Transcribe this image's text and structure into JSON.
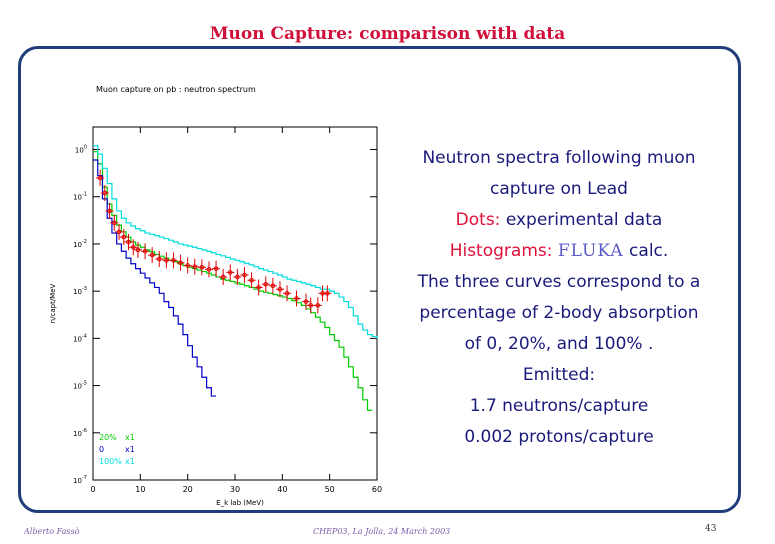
{
  "slide": {
    "title": "Muon Capture: comparison with data",
    "title_color": "#d0103a",
    "frame_color": "#1f3d7a",
    "text_color": "#1a1a7a",
    "highlight_color": "#e0103a"
  },
  "description": {
    "line1": "Neutron spectra following muon",
    "line2": "capture on Lead",
    "dots_label": "Dots:",
    "dots_text": " experimental data",
    "hist_label": "Histograms:",
    "fluka": "FLUKA",
    "hist_text": " calc.",
    "line5": "The three curves correspond to a",
    "line6": "percentage of 2-body absorption",
    "line7": "of 0, 20%, and 100% .",
    "line8": "Emitted:",
    "line9": "1.7 neutrons/capture",
    "line10": "0.002 protons/capture"
  },
  "footer": {
    "author": "Alberto Fassò",
    "conference": "CHEP03, La Jolla, 24 March 2003",
    "page": "43",
    "color": "#7a5aa8"
  },
  "chart_data": {
    "type": "line",
    "title": "Muon capture on pb : neutron spectrum",
    "xlabel": "E_k lab (MeV)",
    "ylabel": "n/capt/MeV",
    "xlim": [
      0,
      60
    ],
    "ylim": [
      1e-07,
      3
    ],
    "yscale": "log",
    "x_ticks": [
      "0",
      "10",
      "20",
      "30",
      "40",
      "50",
      "60"
    ],
    "y_ticks": [
      "10^0",
      "10^-1",
      "10^-2",
      "10^-3",
      "10^-4",
      "10^-5",
      "10^-6",
      "10^-7"
    ],
    "series": [
      {
        "name": "20%",
        "multiplier": "x1",
        "color": "#00cc00",
        "x": [
          0,
          1,
          2,
          3,
          4,
          5,
          6,
          7,
          8,
          9,
          10,
          11,
          12,
          13,
          14,
          15,
          16,
          17,
          18,
          19,
          20,
          21,
          22,
          23,
          24,
          25,
          26,
          27,
          28,
          29,
          30,
          31,
          32,
          33,
          34,
          35,
          36,
          37,
          38,
          39,
          40,
          41,
          42,
          43,
          44,
          45,
          46,
          47,
          48,
          49,
          50,
          51,
          52,
          53,
          54,
          55,
          56,
          57,
          58
        ],
        "y": [
          0.9,
          0.5,
          0.16,
          0.07,
          0.04,
          0.025,
          0.018,
          0.014,
          0.011,
          0.0095,
          0.0085,
          0.0075,
          0.0068,
          0.006,
          0.0055,
          0.005,
          0.0045,
          0.0042,
          0.0038,
          0.0035,
          0.0032,
          0.003,
          0.0028,
          0.0026,
          0.0024,
          0.0022,
          0.002,
          0.0018,
          0.0017,
          0.0016,
          0.0015,
          0.0014,
          0.0013,
          0.0012,
          0.0011,
          0.001,
          0.00095,
          0.0009,
          0.00085,
          0.0008,
          0.00075,
          0.0007,
          0.00063,
          0.00057,
          0.0005,
          0.00042,
          0.00035,
          0.00028,
          0.00022,
          0.00017,
          0.00012,
          9e-05,
          6.5e-05,
          4e-05,
          2.5e-05,
          1.5e-05,
          9e-06,
          5e-06,
          3e-06
        ]
      },
      {
        "name": "0",
        "multiplier": "x1",
        "color": "#0000cc",
        "x": [
          0,
          1,
          2,
          3,
          4,
          5,
          6,
          7,
          8,
          9,
          10,
          11,
          12,
          13,
          14,
          15,
          16,
          17,
          18,
          19,
          20,
          21,
          22,
          23,
          24,
          25
        ],
        "y": [
          0.6,
          0.28,
          0.09,
          0.035,
          0.017,
          0.01,
          0.007,
          0.005,
          0.0038,
          0.003,
          0.0024,
          0.0019,
          0.0015,
          0.0012,
          0.0009,
          0.0006,
          0.00045,
          0.0003,
          0.0002,
          0.00012,
          7e-05,
          4e-05,
          2.5e-05,
          1.5e-05,
          9e-06,
          6e-06
        ]
      },
      {
        "name": "100%",
        "multiplier": "x1",
        "color": "#00dddd",
        "x": [
          0,
          1,
          2,
          3,
          4,
          5,
          6,
          7,
          8,
          9,
          10,
          11,
          12,
          13,
          14,
          15,
          16,
          17,
          18,
          19,
          20,
          21,
          22,
          23,
          24,
          25,
          26,
          27,
          28,
          29,
          30,
          31,
          32,
          33,
          34,
          35,
          36,
          37,
          38,
          39,
          40,
          41,
          42,
          43,
          44,
          45,
          46,
          47,
          48,
          49,
          50,
          51,
          52,
          53,
          54,
          55,
          56,
          57,
          58,
          59,
          60
        ],
        "y": [
          1.2,
          0.8,
          0.4,
          0.19,
          0.09,
          0.05,
          0.035,
          0.028,
          0.024,
          0.021,
          0.019,
          0.017,
          0.016,
          0.015,
          0.014,
          0.013,
          0.012,
          0.011,
          0.01,
          0.0095,
          0.009,
          0.0085,
          0.008,
          0.0075,
          0.007,
          0.0065,
          0.006,
          0.0056,
          0.0052,
          0.0048,
          0.0045,
          0.0042,
          0.0039,
          0.0036,
          0.0033,
          0.003,
          0.0028,
          0.0026,
          0.0024,
          0.0022,
          0.002,
          0.0018,
          0.0017,
          0.0016,
          0.0015,
          0.0014,
          0.0013,
          0.0012,
          0.0011,
          0.0011,
          0.001,
          0.0009,
          0.00075,
          0.0006,
          0.00045,
          0.0003,
          0.0002,
          0.00015,
          0.00012,
          0.00011,
          0.0001
        ]
      }
    ],
    "experimental": {
      "name": "experimental data",
      "color": "#e00000",
      "points": [
        [
          1.5,
          0.25
        ],
        [
          2.5,
          0.12
        ],
        [
          3.5,
          0.05
        ],
        [
          4.5,
          0.028
        ],
        [
          5.5,
          0.018
        ],
        [
          6.5,
          0.014
        ],
        [
          7.5,
          0.011
        ],
        [
          8.5,
          0.0085
        ],
        [
          9.5,
          0.0075
        ],
        [
          11,
          0.007
        ],
        [
          12.5,
          0.0058
        ],
        [
          14,
          0.0048
        ],
        [
          15.5,
          0.0045
        ],
        [
          17,
          0.0045
        ],
        [
          18.5,
          0.004
        ],
        [
          20,
          0.0035
        ],
        [
          21.5,
          0.0033
        ],
        [
          23,
          0.0032
        ],
        [
          24.5,
          0.0029
        ],
        [
          26,
          0.003
        ],
        [
          27.5,
          0.002
        ],
        [
          29,
          0.0025
        ],
        [
          30.5,
          0.002
        ],
        [
          32,
          0.0022
        ],
        [
          33.5,
          0.0017
        ],
        [
          35,
          0.0012
        ],
        [
          36.5,
          0.0014
        ],
        [
          38,
          0.0013
        ],
        [
          39.5,
          0.0011
        ],
        [
          41,
          0.0009
        ],
        [
          43,
          0.0007
        ],
        [
          45,
          0.0006
        ],
        [
          46,
          0.0005
        ],
        [
          47.5,
          0.0005
        ],
        [
          48.5,
          0.0009
        ],
        [
          49.5,
          0.0009
        ]
      ]
    }
  }
}
